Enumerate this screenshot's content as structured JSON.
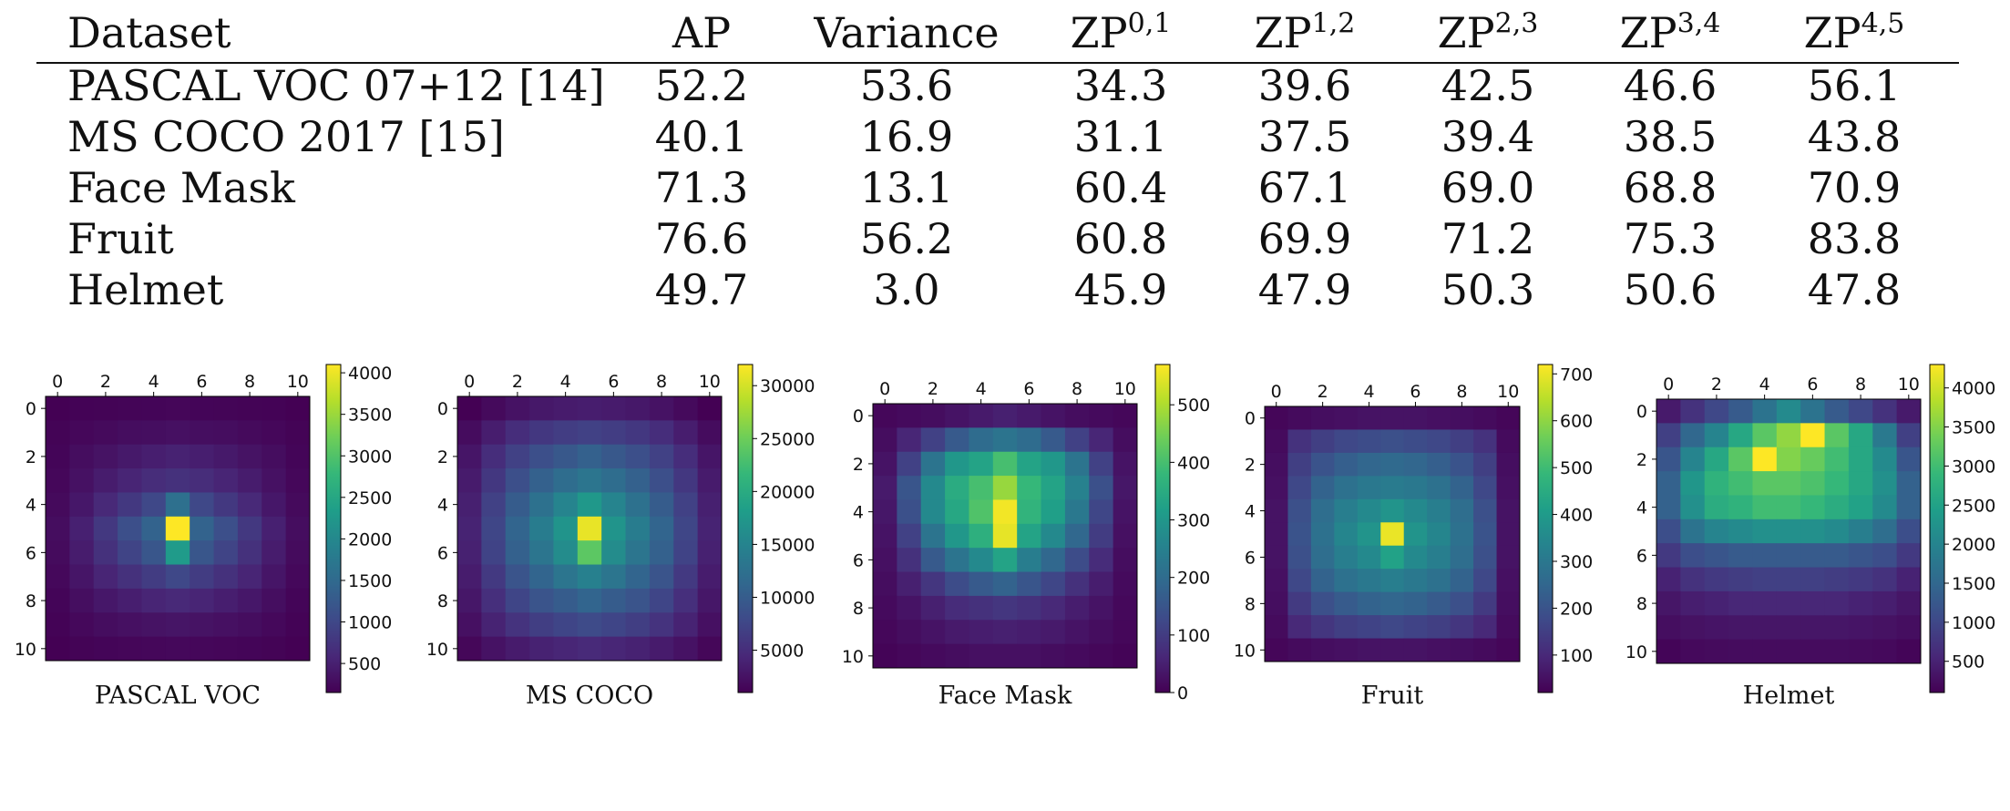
{
  "table": {
    "headers": [
      {
        "base": "Dataset",
        "sup": ""
      },
      {
        "base": "AP",
        "sup": ""
      },
      {
        "base": "Variance",
        "sup": ""
      },
      {
        "base": "ZP",
        "sup": "0,1"
      },
      {
        "base": "ZP",
        "sup": "1,2"
      },
      {
        "base": "ZP",
        "sup": "2,3"
      },
      {
        "base": "ZP",
        "sup": "3,4"
      },
      {
        "base": "ZP",
        "sup": "4,5"
      }
    ],
    "rows": [
      [
        "PASCAL VOC 07+12 [14]",
        "52.2",
        "53.6",
        "34.3",
        "39.6",
        "42.5",
        "46.6",
        "56.1"
      ],
      [
        "MS COCO 2017 [15]",
        "40.1",
        "16.9",
        "31.1",
        "37.5",
        "39.4",
        "38.5",
        "43.8"
      ],
      [
        "Face Mask",
        "71.3",
        "13.1",
        "60.4",
        "67.1",
        "69.0",
        "68.8",
        "70.9"
      ],
      [
        "Fruit",
        "76.6",
        "56.2",
        "60.8",
        "69.9",
        "71.2",
        "75.3",
        "83.8"
      ],
      [
        "Helmet",
        "49.7",
        "3.0",
        "45.9",
        "47.9",
        "50.3",
        "50.6",
        "47.8"
      ]
    ]
  },
  "chart_data": [
    {
      "type": "heatmap",
      "title": "PASCAL VOC",
      "x_ticks": [
        "0",
        "2",
        "4",
        "6",
        "8",
        "10"
      ],
      "y_ticks": [
        "0",
        "2",
        "4",
        "6",
        "8",
        "10"
      ],
      "colorbar_ticks": [
        "500",
        "1000",
        "1500",
        "2000",
        "2500",
        "3000",
        "3500",
        "4000"
      ],
      "vmin": 150,
      "vmax": 4100,
      "z": [
        [
          150,
          170,
          180,
          190,
          200,
          210,
          200,
          190,
          180,
          170,
          150
        ],
        [
          180,
          220,
          250,
          280,
          300,
          320,
          300,
          280,
          250,
          220,
          180
        ],
        [
          200,
          280,
          350,
          420,
          480,
          520,
          480,
          420,
          350,
          280,
          200
        ],
        [
          220,
          330,
          450,
          550,
          650,
          700,
          650,
          550,
          450,
          330,
          220
        ],
        [
          250,
          400,
          600,
          800,
          1000,
          1600,
          1000,
          800,
          600,
          400,
          250
        ],
        [
          280,
          500,
          800,
          1100,
          1400,
          4100,
          1400,
          1100,
          800,
          500,
          280
        ],
        [
          260,
          450,
          700,
          950,
          1200,
          2300,
          1200,
          950,
          700,
          450,
          260
        ],
        [
          230,
          380,
          550,
          700,
          850,
          1000,
          850,
          700,
          550,
          380,
          230
        ],
        [
          200,
          300,
          400,
          480,
          550,
          600,
          550,
          480,
          400,
          300,
          200
        ],
        [
          170,
          230,
          280,
          320,
          350,
          370,
          350,
          320,
          280,
          230,
          170
        ],
        [
          150,
          180,
          200,
          210,
          220,
          230,
          220,
          210,
          200,
          180,
          150
        ]
      ]
    },
    {
      "type": "heatmap",
      "title": "MS COCO",
      "x_ticks": [
        "0",
        "2",
        "4",
        "6",
        "8",
        "10"
      ],
      "y_ticks": [
        "0",
        "2",
        "4",
        "6",
        "8",
        "10"
      ],
      "colorbar_ticks": [
        "5000",
        "10000",
        "15000",
        "20000",
        "25000",
        "30000"
      ],
      "vmin": 1000,
      "vmax": 32000,
      "z": [
        [
          1000,
          1800,
          2500,
          3000,
          3300,
          3500,
          3300,
          3000,
          2500,
          1800,
          1000
        ],
        [
          2000,
          3500,
          5000,
          6000,
          6600,
          7000,
          6600,
          6000,
          5000,
          3500,
          2000
        ],
        [
          2800,
          5000,
          7000,
          8500,
          9500,
          10500,
          9500,
          8500,
          7000,
          5000,
          2800
        ],
        [
          3300,
          6000,
          8500,
          10500,
          12000,
          13000,
          12000,
          10500,
          8500,
          6000,
          3300
        ],
        [
          3700,
          7000,
          10000,
          12500,
          15000,
          17500,
          15000,
          12500,
          10000,
          7000,
          3700
        ],
        [
          4000,
          7500,
          11000,
          14000,
          17000,
          31000,
          17000,
          14000,
          11000,
          7500,
          4000
        ],
        [
          3800,
          7200,
          10500,
          13000,
          16000,
          24000,
          16000,
          13000,
          10500,
          7200,
          3800
        ],
        [
          3400,
          6200,
          9000,
          11000,
          13000,
          14500,
          13000,
          11000,
          9000,
          6200,
          3400
        ],
        [
          2900,
          5200,
          7400,
          9000,
          10000,
          11000,
          10000,
          9000,
          7400,
          5200,
          2900
        ],
        [
          2300,
          4000,
          5600,
          6700,
          7400,
          8000,
          7400,
          6700,
          5600,
          4000,
          2300
        ],
        [
          1500,
          2500,
          3300,
          3900,
          4300,
          4600,
          4300,
          3900,
          3300,
          2500,
          1500
        ]
      ]
    },
    {
      "type": "heatmap",
      "title": "Face Mask",
      "x_ticks": [
        "0",
        "2",
        "4",
        "6",
        "8",
        "10"
      ],
      "y_ticks": [
        "0",
        "2",
        "4",
        "6",
        "8",
        "10"
      ],
      "colorbar_ticks": [
        "0",
        "100",
        "200",
        "300",
        "400",
        "500"
      ],
      "vmin": 0,
      "vmax": 570,
      "z": [
        [
          10,
          15,
          20,
          30,
          40,
          50,
          40,
          30,
          20,
          15,
          10
        ],
        [
          20,
          60,
          110,
          160,
          200,
          220,
          200,
          160,
          110,
          60,
          20
        ],
        [
          30,
          110,
          220,
          300,
          330,
          400,
          330,
          300,
          220,
          110,
          30
        ],
        [
          40,
          150,
          270,
          350,
          400,
          480,
          380,
          330,
          250,
          140,
          35
        ],
        [
          35,
          140,
          270,
          340,
          410,
          560,
          370,
          320,
          230,
          120,
          30
        ],
        [
          30,
          110,
          220,
          300,
          360,
          550,
          330,
          270,
          190,
          100,
          25
        ],
        [
          25,
          80,
          160,
          220,
          270,
          330,
          240,
          190,
          130,
          70,
          20
        ],
        [
          20,
          50,
          90,
          130,
          160,
          180,
          150,
          120,
          80,
          45,
          15
        ],
        [
          15,
          30,
          50,
          70,
          80,
          90,
          80,
          65,
          45,
          30,
          12
        ],
        [
          10,
          20,
          30,
          40,
          45,
          50,
          45,
          40,
          30,
          20,
          10
        ],
        [
          5,
          10,
          15,
          20,
          25,
          25,
          25,
          20,
          15,
          10,
          5
        ]
      ]
    },
    {
      "type": "heatmap",
      "title": "Fruit",
      "x_ticks": [
        "0",
        "2",
        "4",
        "6",
        "8",
        "10"
      ],
      "y_ticks": [
        "0",
        "2",
        "4",
        "6",
        "8",
        "10"
      ],
      "colorbar_ticks": [
        "100",
        "200",
        "300",
        "400",
        "500",
        "600",
        "700"
      ],
      "vmin": 20,
      "vmax": 720,
      "z": [
        [
          30,
          40,
          45,
          50,
          55,
          55,
          55,
          50,
          45,
          40,
          30
        ],
        [
          40,
          120,
          150,
          170,
          180,
          190,
          180,
          170,
          150,
          120,
          40
        ],
        [
          45,
          150,
          200,
          230,
          250,
          260,
          250,
          230,
          200,
          150,
          45
        ],
        [
          50,
          170,
          240,
          280,
          300,
          310,
          300,
          280,
          240,
          170,
          50
        ],
        [
          55,
          190,
          270,
          320,
          350,
          380,
          350,
          320,
          270,
          190,
          55
        ],
        [
          55,
          200,
          280,
          340,
          380,
          700,
          380,
          340,
          280,
          200,
          55
        ],
        [
          55,
          190,
          270,
          320,
          350,
          420,
          350,
          320,
          270,
          190,
          55
        ],
        [
          50,
          170,
          240,
          280,
          300,
          320,
          300,
          280,
          240,
          170,
          50
        ],
        [
          45,
          140,
          190,
          220,
          240,
          250,
          240,
          220,
          190,
          140,
          45
        ],
        [
          40,
          100,
          130,
          150,
          160,
          170,
          160,
          150,
          130,
          100,
          40
        ],
        [
          30,
          40,
          45,
          50,
          55,
          55,
          55,
          50,
          45,
          40,
          30
        ]
      ]
    },
    {
      "type": "heatmap",
      "title": "Helmet",
      "x_ticks": [
        "0",
        "2",
        "4",
        "6",
        "8",
        "10"
      ],
      "y_ticks": [
        "0",
        "2",
        "4",
        "6",
        "8",
        "10"
      ],
      "colorbar_ticks": [
        "500",
        "1000",
        "1500",
        "2000",
        "2500",
        "3000",
        "3500",
        "4000"
      ],
      "vmin": 100,
      "vmax": 4300,
      "z": [
        [
          400,
          700,
          1000,
          1300,
          1700,
          2100,
          1700,
          1300,
          1000,
          700,
          400
        ],
        [
          900,
          1500,
          2000,
          2600,
          3200,
          3600,
          4300,
          3200,
          2600,
          1800,
          900
        ],
        [
          1200,
          2000,
          2600,
          3200,
          4300,
          3500,
          3300,
          3000,
          2600,
          2100,
          1200
        ],
        [
          1400,
          2300,
          2800,
          3000,
          3200,
          3200,
          3100,
          2900,
          2600,
          2200,
          1400
        ],
        [
          1400,
          2200,
          2700,
          2800,
          3000,
          3000,
          2900,
          2700,
          2500,
          2100,
          1400
        ],
        [
          1100,
          1700,
          2000,
          2100,
          2200,
          2200,
          2200,
          2100,
          1900,
          1600,
          1100
        ],
        [
          800,
          1100,
          1200,
          1300,
          1300,
          1300,
          1300,
          1300,
          1200,
          1100,
          800
        ],
        [
          500,
          700,
          800,
          850,
          900,
          900,
          900,
          850,
          800,
          700,
          500
        ],
        [
          350,
          450,
          500,
          550,
          550,
          550,
          550,
          550,
          500,
          450,
          350
        ],
        [
          250,
          300,
          330,
          350,
          350,
          350,
          350,
          350,
          330,
          300,
          250
        ],
        [
          150,
          200,
          220,
          230,
          230,
          230,
          230,
          230,
          220,
          200,
          150
        ]
      ]
    }
  ]
}
